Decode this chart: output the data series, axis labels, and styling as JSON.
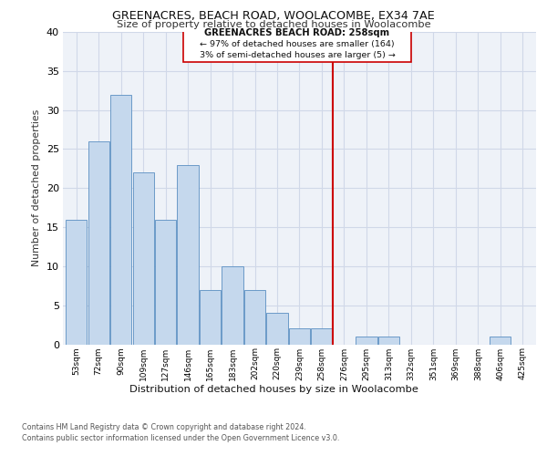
{
  "title1": "GREENACRES, BEACH ROAD, WOOLACOMBE, EX34 7AE",
  "title2": "Size of property relative to detached houses in Woolacombe",
  "xlabel": "Distribution of detached houses by size in Woolacombe",
  "ylabel": "Number of detached properties",
  "categories": [
    "53sqm",
    "72sqm",
    "90sqm",
    "109sqm",
    "127sqm",
    "146sqm",
    "165sqm",
    "183sqm",
    "202sqm",
    "220sqm",
    "239sqm",
    "258sqm",
    "276sqm",
    "295sqm",
    "313sqm",
    "332sqm",
    "351sqm",
    "369sqm",
    "388sqm",
    "406sqm",
    "425sqm"
  ],
  "values": [
    16,
    26,
    32,
    22,
    16,
    23,
    7,
    10,
    7,
    4,
    2,
    2,
    0,
    1,
    1,
    0,
    0,
    0,
    0,
    1,
    0
  ],
  "bar_color": "#c5d8ed",
  "bar_edge_color": "#5a8fc2",
  "highlight_line_index": 11.5,
  "highlight_color": "#cc0000",
  "annotation_title": "GREENACRES BEACH ROAD: 258sqm",
  "annotation_line1": "← 97% of detached houses are smaller (164)",
  "annotation_line2": "3% of semi-detached houses are larger (5) →",
  "annotation_box_color": "#ffffff",
  "annotation_box_edge": "#cc0000",
  "ylim": [
    0,
    40
  ],
  "yticks": [
    0,
    5,
    10,
    15,
    20,
    25,
    30,
    35,
    40
  ],
  "grid_color": "#d0d8e8",
  "background_color": "#eef2f8",
  "footer1": "Contains HM Land Registry data © Crown copyright and database right 2024.",
  "footer2": "Contains public sector information licensed under the Open Government Licence v3.0."
}
